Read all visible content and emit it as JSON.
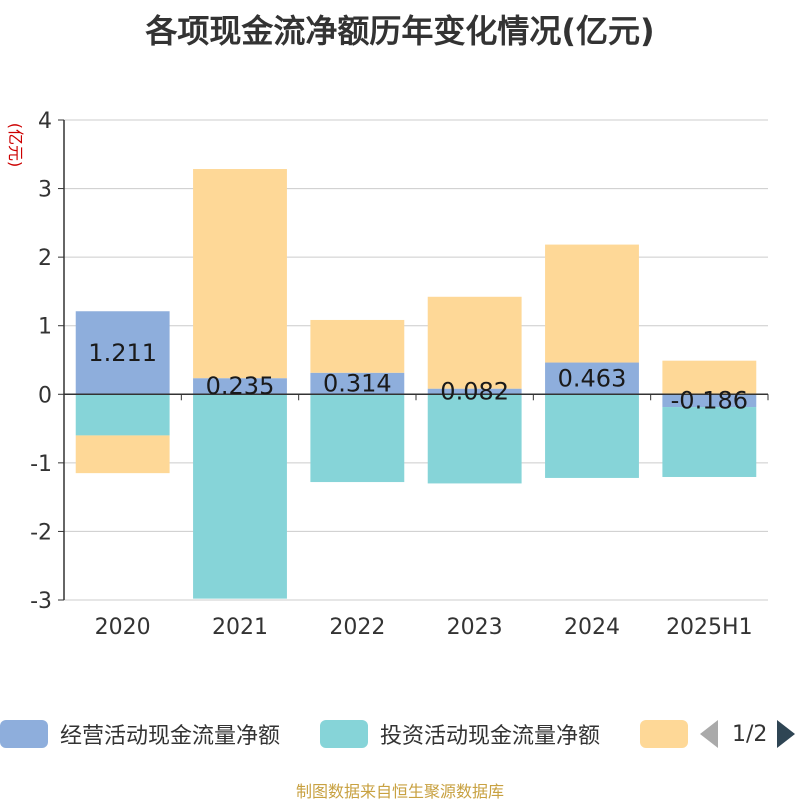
{
  "title": "各项现金流净额历年变化情况(亿元)",
  "source": "制图数据来自恒生聚源数据库",
  "pager": {
    "text": "1/2"
  },
  "colors": {
    "operating": "#8eaedc",
    "investing": "#86d4d8",
    "financing": "#fed897",
    "axis": "#333333",
    "grid": "#cccccc",
    "ylabel": "#cc0000"
  },
  "chart_data": {
    "type": "bar",
    "stacked": true,
    "ylabel": "(亿元)",
    "ylim": [
      -3,
      4
    ],
    "yticks": [
      "-3",
      "-2",
      "-1",
      "0",
      "1",
      "2",
      "3",
      "4"
    ],
    "categories": [
      "2020",
      "2021",
      "2022",
      "2023",
      "2024",
      "2025H1"
    ],
    "series": [
      {
        "name": "经营活动现金流量净额",
        "values": [
          1.211,
          0.235,
          0.314,
          0.082,
          0.463,
          -0.186
        ],
        "labels": [
          "1.211",
          "0.235",
          "0.314",
          "0.082",
          "0.463",
          "-0.186"
        ]
      },
      {
        "name": "投资活动现金流量净额",
        "values": [
          -0.6,
          -2.98,
          -1.28,
          -1.3,
          -1.22,
          -1.02
        ]
      },
      {
        "name": "",
        "values": [
          -0.55,
          3.05,
          0.77,
          1.34,
          1.72,
          0.49
        ]
      }
    ],
    "legend_position": "bottom",
    "grid": true
  }
}
